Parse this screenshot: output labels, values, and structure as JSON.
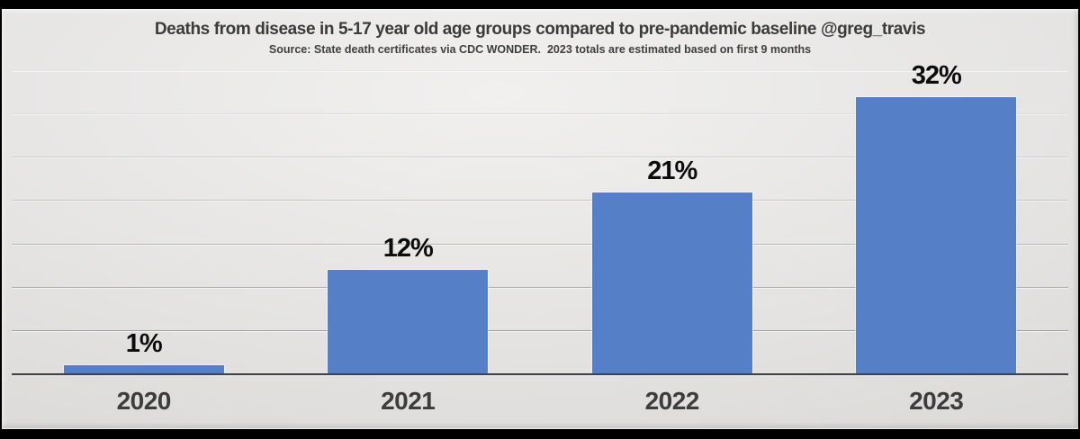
{
  "header": {
    "title": "Deaths from disease in 5-17 year old age groups compared to pre-pandemic baseline @greg_travis",
    "subtitle": "Source: State death certificates via CDC WONDER.  2023 totals are estimated based on first 9 months"
  },
  "chart_data": {
    "type": "bar",
    "title": "Deaths from disease in 5-17 year old age groups compared to pre-pandemic baseline @greg_travis",
    "subtitle": "Source: State death certificates via CDC WONDER.  2023 totals are estimated based on first 9 months",
    "categories": [
      "2020",
      "2021",
      "2022",
      "2023"
    ],
    "values": [
      1,
      12,
      21,
      32
    ],
    "value_labels": [
      "1%",
      "12%",
      "21%",
      "32%"
    ],
    "xlabel": "",
    "ylabel": "",
    "ylim": [
      0,
      35
    ],
    "gridline_step": 5,
    "grid": true,
    "legend_position": "none",
    "bar_color": "#5580c7",
    "axis_color": "#414247",
    "value_label_color": "#0c0c0c",
    "category_label_color": "#3d3d3d",
    "background_color": "#e4e3e2"
  }
}
